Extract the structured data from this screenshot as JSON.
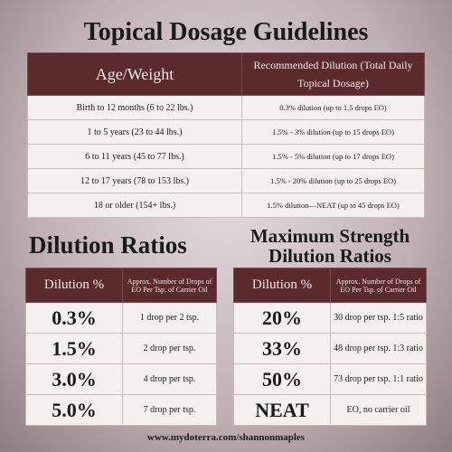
{
  "title": "Topical Dosage Guidelines",
  "guidelines": {
    "header": [
      "Age/Weight",
      "Recommended Dilution (Total Daily Topical Dosage)"
    ],
    "rows": [
      [
        "Birth to 12 months (6 to 22 lbs.)",
        "0.3% dilution (up to 1.5 drops EO)"
      ],
      [
        "1 to 5 years (23 to 44 lbs.)",
        "1.5% - 3% dilution (up to 15 drops EO)"
      ],
      [
        "6 to 11 years (45 to 77 lbs.)",
        "1.5% - 5% dilution (up to 17 drops EO)"
      ],
      [
        "12 to 17 years (78 to 153 lbs.)",
        "1.5% - 20% dilution (up to 25 drops EO)"
      ],
      [
        "18 or older (154+ lbs.)",
        "1.5% dilution—NEAT (up to 45 drops EO)"
      ]
    ]
  },
  "dilution": {
    "title": "Dilution Ratios",
    "header": [
      "Dilution %",
      "Approx. Number of Drops of EO Per Tsp. of Carrier Oil"
    ],
    "rows": [
      [
        "0.3%",
        "1 drop per 2 tsp."
      ],
      [
        "1.5%",
        "2 drop per tsp."
      ],
      [
        "3.0%",
        "4 drop per tsp."
      ],
      [
        "5.0%",
        "7 drop per tsp."
      ]
    ]
  },
  "maximum": {
    "title": [
      "Maximum Strength",
      "Dilution Ratios"
    ],
    "header": [
      "Dilution %",
      "Approx. Number of Drops of EO Per Tsp. of Carrier Oil"
    ],
    "rows": [
      [
        "20%",
        "30 drop per tsp. 1:5 ratio"
      ],
      [
        "33%",
        "48 drop per tsp. 1:3 ratio"
      ],
      [
        "50%",
        "73 drop per tsp. 1:1 ratio"
      ],
      [
        "NEAT",
        "EO, no carrier oil"
      ]
    ]
  },
  "footer": "www.mydoterra.com/shannonmaples"
}
